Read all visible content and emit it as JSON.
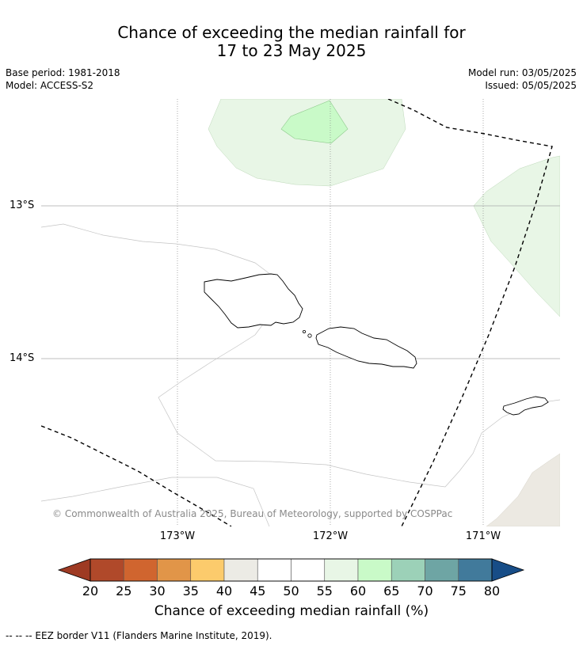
{
  "header": {
    "title_line1": "Chance of exceeding the median rainfall for",
    "title_line2": "17 to 23 May 2025",
    "base_period": "Base period: 1981-2018",
    "model": "Model: ACCESS-S2",
    "model_run": "Model run: 03/05/2025",
    "issued": "Issued: 05/05/2025"
  },
  "map": {
    "lat_labels": [
      "13°S",
      "14°S"
    ],
    "lon_labels": [
      "173°W",
      "172°W",
      "171°W"
    ],
    "copyright": "© Commonwealth of Australia 2025, Bureau of Meteorology, supported by COSPPac",
    "colors": {
      "band_55_60": "#e8f6e6",
      "band_60_65": "#c9fac8",
      "band_40_45": "#ece9e2",
      "eez": "#000000",
      "coast": "#000000",
      "grid": "#999999"
    }
  },
  "colorbar": {
    "ticks": [
      "20",
      "25",
      "30",
      "35",
      "40",
      "45",
      "50",
      "55",
      "60",
      "65",
      "70",
      "75",
      "80"
    ],
    "colors": [
      "#b0492a",
      "#d0652f",
      "#e19548",
      "#fccb6c",
      "#ecebe5",
      "#ffffff",
      "#ffffff",
      "#e8f6e6",
      "#c9fac8",
      "#9cd1b8",
      "#6ea5a4",
      "#417a9b"
    ],
    "low_extend_color": "#9e3a23",
    "high_extend_color": "#174d87",
    "title": "Chance of exceeding median rainfall (%)"
  },
  "footnote": "--  --  -- EEZ border V11 (Flanders Marine Institute, 2019)."
}
